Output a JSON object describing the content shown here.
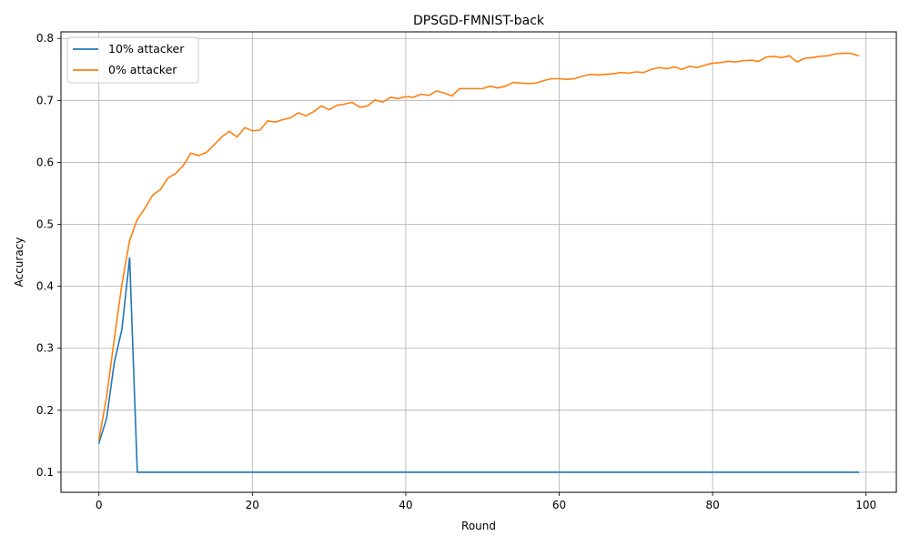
{
  "chart_data": {
    "type": "line",
    "title": "DPSGD-FMNIST-back",
    "xlabel": "Round",
    "ylabel": "Accuracy",
    "xlim": [
      -4.95,
      103.95
    ],
    "ylim": [
      0.0676,
      0.8106
    ],
    "xticks": [
      0,
      20,
      40,
      60,
      80,
      100
    ],
    "xtick_labels": [
      "0",
      "20",
      "40",
      "60",
      "80",
      "100"
    ],
    "yticks": [
      0.1,
      0.2,
      0.3,
      0.4,
      0.5,
      0.6,
      0.7,
      0.8
    ],
    "ytick_labels": [
      "0.1",
      "0.2",
      "0.3",
      "0.4",
      "0.5",
      "0.6",
      "0.7",
      "0.8"
    ],
    "grid": true,
    "legend_position": "top-left",
    "series": [
      {
        "name": "10% attacker",
        "color": "#1f77b4",
        "x": [
          0,
          1,
          2,
          3,
          4,
          5,
          6,
          7,
          8,
          9,
          10,
          11,
          12,
          13,
          14,
          15,
          16,
          17,
          18,
          19,
          20,
          21,
          22,
          23,
          24,
          25,
          26,
          27,
          28,
          29,
          30,
          31,
          32,
          33,
          34,
          35,
          36,
          37,
          38,
          39,
          40,
          41,
          42,
          43,
          44,
          45,
          46,
          47,
          48,
          49,
          50,
          51,
          52,
          53,
          54,
          55,
          56,
          57,
          58,
          59,
          60,
          61,
          62,
          63,
          64,
          65,
          66,
          67,
          68,
          69,
          70,
          71,
          72,
          73,
          74,
          75,
          76,
          77,
          78,
          79,
          80,
          81,
          82,
          83,
          84,
          85,
          86,
          87,
          88,
          89,
          90,
          91,
          92,
          93,
          94,
          95,
          96,
          97,
          98,
          99
        ],
        "y": [
          0.147,
          0.187,
          0.277,
          0.331,
          0.446,
          0.1,
          0.1,
          0.1,
          0.1,
          0.1,
          0.1,
          0.1,
          0.1,
          0.1,
          0.1,
          0.1,
          0.1,
          0.1,
          0.1,
          0.1,
          0.1,
          0.1,
          0.1,
          0.1,
          0.1,
          0.1,
          0.1,
          0.1,
          0.1,
          0.1,
          0.1,
          0.1,
          0.1,
          0.1,
          0.1,
          0.1,
          0.1,
          0.1,
          0.1,
          0.1,
          0.1,
          0.1,
          0.1,
          0.1,
          0.1,
          0.1,
          0.1,
          0.1,
          0.1,
          0.1,
          0.1,
          0.1,
          0.1,
          0.1,
          0.1,
          0.1,
          0.1,
          0.1,
          0.1,
          0.1,
          0.1,
          0.1,
          0.1,
          0.1,
          0.1,
          0.1,
          0.1,
          0.1,
          0.1,
          0.1,
          0.1,
          0.1,
          0.1,
          0.1,
          0.1,
          0.1,
          0.1,
          0.1,
          0.1,
          0.1,
          0.1,
          0.1,
          0.1,
          0.1,
          0.1,
          0.1,
          0.1,
          0.1,
          0.1,
          0.1,
          0.1,
          0.1,
          0.1,
          0.1,
          0.1,
          0.1,
          0.1,
          0.1,
          0.1,
          0.1
        ]
      },
      {
        "name": "0% attacker",
        "color": "#ff7f0e",
        "x": [
          0,
          1,
          2,
          3,
          4,
          5,
          6,
          7,
          8,
          9,
          10,
          11,
          12,
          13,
          14,
          15,
          16,
          17,
          18,
          19,
          20,
          21,
          22,
          23,
          24,
          25,
          26,
          27,
          28,
          29,
          30,
          31,
          32,
          33,
          34,
          35,
          36,
          37,
          38,
          39,
          40,
          41,
          42,
          43,
          44,
          45,
          46,
          47,
          48,
          49,
          50,
          51,
          52,
          53,
          54,
          55,
          56,
          57,
          58,
          59,
          60,
          61,
          62,
          63,
          64,
          65,
          66,
          67,
          68,
          69,
          70,
          71,
          72,
          73,
          74,
          75,
          76,
          77,
          78,
          79,
          80,
          81,
          82,
          83,
          84,
          85,
          86,
          87,
          88,
          89,
          90,
          91,
          92,
          93,
          94,
          95,
          96,
          97,
          98,
          99
        ],
        "y": [
          0.153,
          0.222,
          0.315,
          0.404,
          0.474,
          0.508,
          0.526,
          0.547,
          0.556,
          0.575,
          0.582,
          0.595,
          0.615,
          0.611,
          0.616,
          0.628,
          0.641,
          0.65,
          0.641,
          0.656,
          0.651,
          0.652,
          0.667,
          0.665,
          0.669,
          0.672,
          0.68,
          0.675,
          0.682,
          0.691,
          0.685,
          0.692,
          0.694,
          0.697,
          0.689,
          0.691,
          0.701,
          0.697,
          0.705,
          0.703,
          0.706,
          0.705,
          0.71,
          0.708,
          0.715,
          0.712,
          0.707,
          0.719,
          0.719,
          0.719,
          0.719,
          0.723,
          0.72,
          0.723,
          0.729,
          0.728,
          0.727,
          0.728,
          0.732,
          0.735,
          0.735,
          0.734,
          0.735,
          0.739,
          0.742,
          0.741,
          0.742,
          0.743,
          0.745,
          0.744,
          0.746,
          0.745,
          0.75,
          0.753,
          0.751,
          0.754,
          0.75,
          0.755,
          0.753,
          0.757,
          0.76,
          0.761,
          0.763,
          0.762,
          0.764,
          0.765,
          0.763,
          0.77,
          0.771,
          0.769,
          0.772,
          0.762,
          0.768,
          0.769,
          0.771,
          0.772,
          0.775,
          0.776,
          0.776,
          0.772
        ]
      }
    ]
  }
}
